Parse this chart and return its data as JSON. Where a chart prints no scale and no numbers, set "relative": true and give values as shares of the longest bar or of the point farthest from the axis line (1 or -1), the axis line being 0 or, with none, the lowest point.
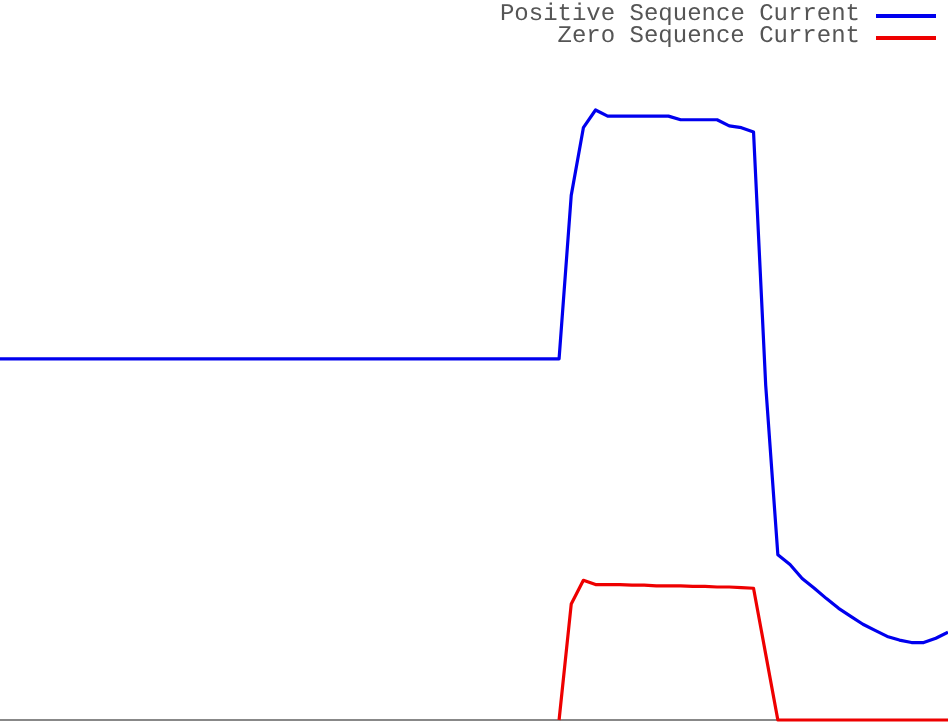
{
  "chart_data": {
    "type": "line",
    "relative": true,
    "legend": "top right",
    "grid": false,
    "marker": "none",
    "line_style": "solid",
    "categories": [
      null,
      null,
      null,
      null,
      null,
      null,
      null,
      null,
      null,
      null,
      null,
      null,
      null,
      null,
      null,
      null,
      null,
      null,
      null,
      null,
      null,
      null,
      null,
      null,
      null,
      null,
      null,
      null,
      null,
      null,
      null,
      null,
      null,
      null,
      null,
      null,
      null,
      null,
      null,
      null,
      null,
      null,
      null,
      null,
      null,
      null,
      null,
      null,
      null,
      null,
      null,
      null,
      null,
      null,
      null,
      null,
      null,
      null,
      null,
      null,
      null,
      null,
      null,
      null,
      null,
      null,
      null,
      null,
      null,
      null,
      null,
      null,
      null,
      null,
      null,
      null,
      null,
      null,
      null
    ],
    "series": [
      {
        "name": "Positive Sequence Current",
        "color": "#0000ee",
        "values": [
          0.592,
          0.592,
          0.592,
          0.592,
          0.592,
          0.592,
          0.592,
          0.592,
          0.592,
          0.592,
          0.592,
          0.592,
          0.592,
          0.592,
          0.592,
          0.592,
          0.592,
          0.592,
          0.592,
          0.592,
          0.592,
          0.592,
          0.592,
          0.592,
          0.592,
          0.592,
          0.592,
          0.592,
          0.592,
          0.592,
          0.592,
          0.592,
          0.592,
          0.592,
          0.592,
          0.592,
          0.592,
          0.592,
          0.592,
          0.592,
          0.592,
          0.592,
          0.592,
          0.592,
          0.592,
          0.592,
          0.592,
          0.86,
          0.971,
          1,
          0.99,
          0.99,
          0.99,
          0.99,
          0.99,
          0.99,
          0.984,
          0.984,
          0.984,
          0.984,
          0.974,
          0.971,
          0.964,
          0.549,
          0.271,
          0.255,
          0.232,
          0.216,
          0.199,
          0.183,
          0.17,
          0.157,
          0.147,
          0.137,
          0.131,
          0.127,
          0.127,
          0.134,
          0.144
        ]
      },
      {
        "name": "Zero Sequence Current",
        "color": "#ee0000",
        "values": [
          null,
          null,
          null,
          null,
          null,
          null,
          null,
          null,
          null,
          null,
          null,
          null,
          null,
          null,
          null,
          null,
          null,
          null,
          null,
          null,
          null,
          null,
          null,
          null,
          null,
          null,
          null,
          null,
          null,
          null,
          null,
          null,
          null,
          null,
          null,
          null,
          null,
          null,
          null,
          null,
          null,
          null,
          null,
          null,
          null,
          null,
          0,
          0.19,
          0.229,
          0.222,
          0.222,
          0.222,
          0.221,
          0.221,
          0.22,
          0.22,
          0.22,
          0.219,
          0.219,
          0.218,
          0.218,
          0.217,
          0.216,
          0.108,
          0,
          0,
          0,
          0,
          0,
          0,
          0,
          0,
          0,
          0,
          0,
          0,
          0,
          0,
          0
        ]
      }
    ]
  }
}
